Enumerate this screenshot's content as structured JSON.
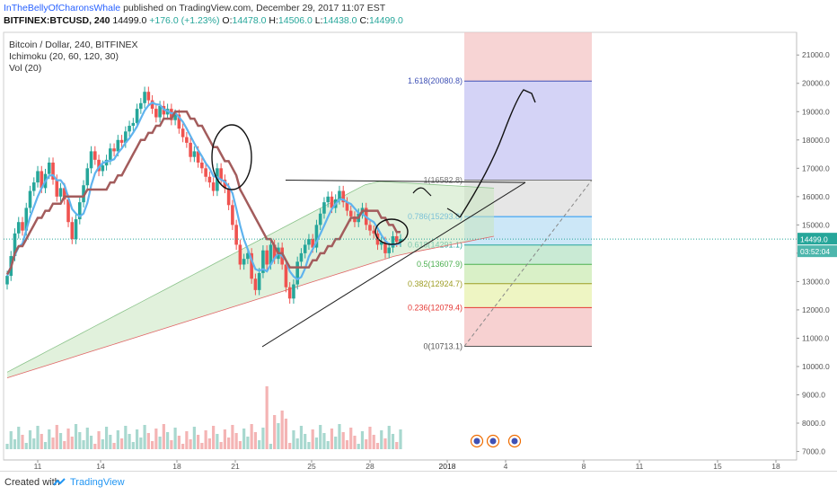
{
  "header": {
    "author": "InTheBellyOfCharonsWhale",
    "published": " published on TradingView.com, December 29, 2017 11:07 EST",
    "symbol": "BITFINEX:BTCUSD, 240",
    "price": "14499.0",
    "change": "+176.0 (+1.23%)",
    "o_label": "O:",
    "o_value": "14478.0",
    "h_label": "H:",
    "h_value": "14506.0",
    "l_label": "L:",
    "l_value": "14438.0",
    "c_label": "C:",
    "c_value": "14499.0"
  },
  "legend": {
    "title": "Bitcoin / Dollar, 240, BITFINEX",
    "ichimoku": "Ichimoku (20, 60, 120, 30)",
    "vol": "Vol (20)"
  },
  "footer": {
    "created": "Created with",
    "brand": "TradingView"
  },
  "colors": {
    "bull": "#26a69a",
    "bear": "#ef5350",
    "tenkan": "#5fb3ee",
    "kijun": "#a35c5c",
    "cloud": "#c8e6c0",
    "fib_blue": "#c9c8f4",
    "fib_red": "#f4c2c2"
  },
  "chart_data": {
    "type": "candlestick",
    "ylim": [
      6700,
      21800
    ],
    "y_ticks": [
      "21000.0",
      "20000.0",
      "19000.0",
      "18000.0",
      "17000.0",
      "16000.0",
      "15000.0",
      "14000.0",
      "13000.0",
      "12000.0",
      "11000.0",
      "10000.0",
      "9000.0",
      "8000.0",
      "7000.0"
    ],
    "x_ticks": [
      "11",
      "14",
      "18",
      "21",
      "25",
      "28",
      "2018",
      "4",
      "8",
      "11",
      "15",
      "18"
    ],
    "last_price": "14499.0",
    "countdown": "03:52:04",
    "fib_levels": [
      {
        "label": "1.618(20080.8)",
        "value": 20080.8,
        "color": "#3f51b5"
      },
      {
        "label": "1(16582.8)",
        "value": 16582.8,
        "color": "#777777"
      },
      {
        "label": "0.786(15293.8)",
        "value": 15293.8,
        "color": "#2196f3"
      },
      {
        "label": "0.618(14291.1)",
        "value": 14291.1,
        "color": "#26a69a"
      },
      {
        "label": "0.5(13607.9)",
        "value": 13607.9,
        "color": "#4caf50"
      },
      {
        "label": "0.382(12924.7)",
        "value": 12924.7,
        "color": "#9e9d24"
      },
      {
        "label": "0.236(12079.4)",
        "value": 12079.4,
        "color": "#e53935"
      },
      {
        "label": "0(10713.1)",
        "value": 10713.1,
        "color": "#555555"
      }
    ],
    "candles_close": [
      13200,
      13900,
      14700,
      15100,
      14800,
      15600,
      16200,
      16500,
      16900,
      16300,
      16800,
      17200,
      16600,
      16000,
      16300,
      15900,
      15100,
      14500,
      15200,
      15800,
      16400,
      17000,
      17600,
      17300,
      16900,
      17100,
      17300,
      17700,
      17600,
      18000,
      17900,
      18300,
      18500,
      18600,
      19100,
      19300,
      19700,
      19400,
      19100,
      18800,
      19200,
      18900,
      19100,
      18700,
      18900,
      18400,
      18100,
      17900,
      17400,
      17600,
      17200,
      17000,
      16700,
      16500,
      16200,
      17000,
      16600,
      16300,
      15700,
      15000,
      14300,
      13600,
      13800,
      14000,
      13100,
      12700,
      13300,
      14100,
      13600,
      14300,
      13800,
      14200,
      13600,
      12800,
      12400,
      12900,
      13700,
      14000,
      14300,
      14500,
      14200,
      15000,
      15400,
      15800,
      16000,
      15600,
      15900,
      16200,
      15800,
      15500,
      15300,
      15100,
      15400,
      15600,
      15000,
      14800,
      14700,
      14300,
      14400,
      14000,
      14200,
      14600,
      14400,
      14500
    ]
  }
}
